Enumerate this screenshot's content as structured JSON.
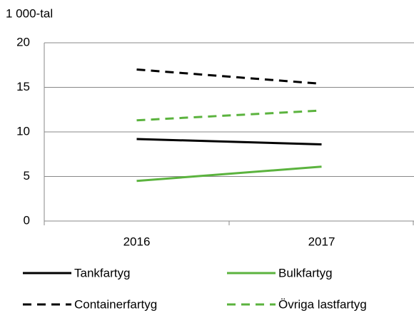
{
  "chart_data": {
    "type": "line",
    "unit_label": "1 000-tal",
    "categories": [
      "2016",
      "2017"
    ],
    "series": [
      {
        "name": "Tankfartyg",
        "color": "#000000",
        "dashed": false,
        "values": [
          9.2,
          8.6
        ]
      },
      {
        "name": "Bulkfartyg",
        "color": "#5bb33e",
        "dashed": false,
        "values": [
          4.5,
          6.1
        ]
      },
      {
        "name": "Containerfartyg",
        "color": "#000000",
        "dashed": true,
        "values": [
          17.0,
          15.4
        ]
      },
      {
        "name": "Övriga lastfartyg",
        "color": "#5bb33e",
        "dashed": true,
        "values": [
          11.3,
          12.4
        ]
      }
    ],
    "ylim": [
      0,
      20
    ],
    "yticks": [
      0,
      5,
      10,
      15,
      20
    ],
    "grid": true
  }
}
